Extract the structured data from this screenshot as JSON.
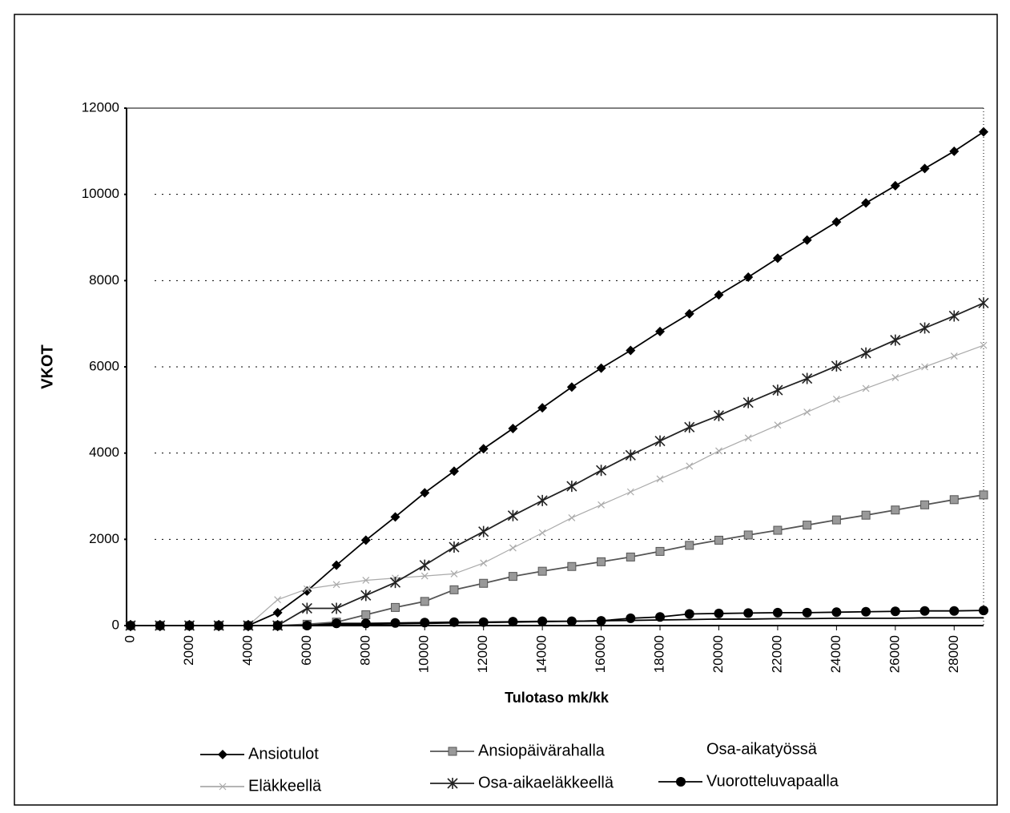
{
  "chart_data": {
    "type": "line",
    "x_label": "Tulotaso mk/kk",
    "y_label": "VKOT",
    "x": [
      0,
      1000,
      2000,
      3000,
      4000,
      5000,
      6000,
      7000,
      8000,
      9000,
      10000,
      11000,
      12000,
      13000,
      14000,
      15000,
      16000,
      17000,
      18000,
      19000,
      20000,
      21000,
      22000,
      23000,
      24000,
      25000,
      26000,
      27000,
      28000,
      29000
    ],
    "xlim": [
      0,
      29000
    ],
    "xticks": [
      0,
      2000,
      4000,
      6000,
      8000,
      10000,
      12000,
      14000,
      16000,
      18000,
      20000,
      22000,
      24000,
      26000,
      28000
    ],
    "ylim": [
      0,
      12000
    ],
    "yticks": [
      0,
      2000,
      4000,
      6000,
      8000,
      10000,
      12000
    ],
    "grid": true,
    "legend": "bottom",
    "series": [
      {
        "name": "Ansiotulot",
        "color": "#000000",
        "marker": "diamond",
        "values": [
          0,
          0,
          0,
          0,
          0,
          300,
          800,
          1400,
          1980,
          2520,
          3080,
          3580,
          4100,
          4570,
          5050,
          5530,
          5970,
          6380,
          6820,
          7230,
          7670,
          8080,
          8520,
          8940,
          9360,
          9800,
          10200,
          10600,
          11000,
          11450
        ]
      },
      {
        "name": "Ansiopäivärahalla",
        "color": "#555555",
        "marker": "square",
        "values": [
          0,
          0,
          0,
          0,
          0,
          0,
          30,
          80,
          250,
          420,
          560,
          830,
          980,
          1140,
          1260,
          1370,
          1480,
          1590,
          1720,
          1860,
          1980,
          2100,
          2210,
          2330,
          2450,
          2560,
          2680,
          2800,
          2920,
          3030
        ]
      },
      {
        "name": "Osa-aikatyössä",
        "color": "#000000",
        "marker": "none",
        "values": [
          0,
          0,
          0,
          0,
          0,
          0,
          0,
          20,
          30,
          40,
          50,
          60,
          70,
          80,
          90,
          100,
          110,
          120,
          130,
          140,
          150,
          150,
          160,
          160,
          170,
          170,
          170,
          180,
          180,
          180
        ]
      },
      {
        "name": "Eläkkeellä",
        "color": "#aaaaaa",
        "marker": "x",
        "values": [
          0,
          0,
          0,
          0,
          0,
          600,
          850,
          950,
          1050,
          1100,
          1150,
          1200,
          1450,
          1800,
          2150,
          2500,
          2800,
          3100,
          3400,
          3700,
          4050,
          4350,
          4650,
          4950,
          5250,
          5500,
          5750,
          6000,
          6250,
          6500
        ]
      },
      {
        "name": "Osa-aikaeläkkeellä",
        "color": "#222222",
        "marker": "star",
        "values": [
          0,
          0,
          0,
          0,
          0,
          0,
          400,
          400,
          700,
          1000,
          1400,
          1820,
          2180,
          2550,
          2900,
          3230,
          3600,
          3950,
          4280,
          4600,
          4870,
          5170,
          5460,
          5730,
          6020,
          6320,
          6620,
          6900,
          7180,
          7480
        ]
      },
      {
        "name": "Vuorotteluvapaalla",
        "color": "#000000",
        "marker": "circle",
        "values": [
          0,
          0,
          0,
          0,
          0,
          0,
          0,
          50,
          50,
          60,
          70,
          80,
          80,
          90,
          100,
          100,
          110,
          170,
          200,
          270,
          280,
          290,
          300,
          300,
          310,
          320,
          330,
          340,
          340,
          350
        ]
      }
    ]
  }
}
